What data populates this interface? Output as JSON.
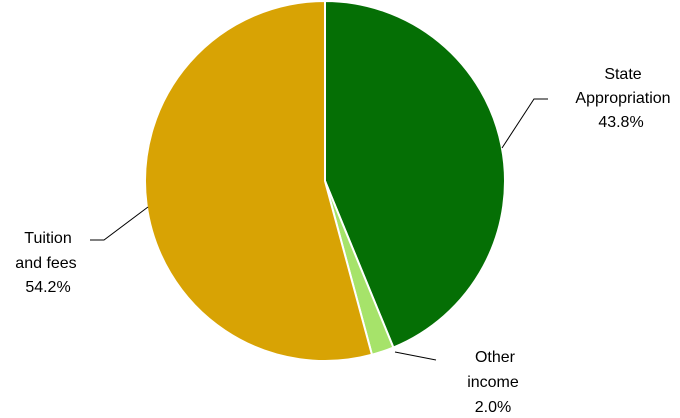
{
  "chart_data": {
    "type": "pie",
    "title": "",
    "slices": [
      {
        "label_lines": [
          "State",
          "Appropriation"
        ],
        "pct_label": "43.8%",
        "value": 43.8,
        "color": "#056f05"
      },
      {
        "label_lines": [
          "Other",
          "income"
        ],
        "pct_label": "2.0%",
        "value": 2.0,
        "color": "#a6e36a"
      },
      {
        "label_lines": [
          "Tuition",
          "and fees"
        ],
        "pct_label": "54.2%",
        "value": 54.2,
        "color": "#d8a304"
      }
    ],
    "start": "12 o'clock",
    "direction": "clockwise",
    "legend": "none",
    "labels": "outside with leader lines"
  }
}
